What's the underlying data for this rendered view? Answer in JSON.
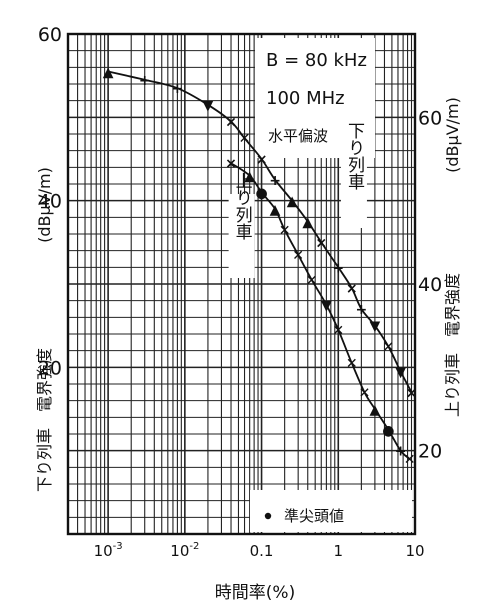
{
  "chart_data": {
    "type": "scatter",
    "title": "",
    "x_axis": {
      "label": "時間率(%)",
      "scale": "log",
      "range": [
        0.0003,
        10
      ],
      "tick_labels": [
        "10^-3",
        "10^-2",
        "0.1",
        "1",
        "10"
      ],
      "tick_values": [
        0.001,
        0.01,
        0.1,
        1,
        10
      ]
    },
    "y_left": {
      "label_unit": "(dBμV/m)",
      "label_text": "下り列車　電界強度",
      "range": [
        0,
        60
      ],
      "tick_labels": [
        "20",
        "40",
        "60"
      ],
      "tick_values": [
        20,
        40,
        60
      ]
    },
    "y_right": {
      "label_unit": "(dBμV/m)",
      "label_text": "上り列車　電界強度",
      "range": [
        10,
        70
      ],
      "tick_labels": [
        "20",
        "40",
        "60"
      ],
      "tick_values": [
        20,
        40,
        60
      ]
    },
    "grid": true,
    "annotations": [
      "B = 80 kHz",
      "100 MHz",
      "水平偏波"
    ],
    "legend": {
      "entries": [
        "準尖頭値"
      ],
      "placement": "bottom-right"
    },
    "series": [
      {
        "name": "下り列車",
        "y_axis": "left",
        "values_x": [
          0.001,
          0.003,
          0.008,
          0.02,
          0.04,
          0.06,
          0.1,
          0.15,
          0.25,
          0.4,
          0.6,
          1.0,
          1.5,
          2.0,
          3.0,
          4.5,
          6.5,
          9.0
        ],
        "values_y": [
          55.5,
          54.5,
          53.5,
          51.5,
          49.5,
          47.5,
          45.0,
          42.5,
          40.0,
          37.5,
          35.0,
          32.0,
          29.5,
          27.0,
          25.0,
          22.5,
          19.5,
          17.0
        ],
        "markers": [
          "▲",
          "+",
          "+",
          "▼",
          "×",
          "✕",
          "×",
          "+",
          "▲",
          "▲",
          "×",
          "+",
          "×",
          "+",
          "▼",
          "✕",
          "▼",
          "×"
        ]
      },
      {
        "name": "上り列車",
        "y_axis": "right",
        "values_x": [
          0.04,
          0.07,
          0.1,
          0.15,
          0.2,
          0.3,
          0.45,
          0.7,
          1.0,
          1.5,
          2.2,
          3.0,
          4.5,
          6.5,
          8.5
        ],
        "values_y": [
          54.5,
          53.0,
          51.0,
          49.0,
          46.5,
          43.5,
          40.5,
          37.5,
          34.5,
          30.5,
          27.0,
          25.0,
          22.5,
          20.0,
          19.0
        ],
        "markers": [
          "×",
          "▲",
          "●",
          "▲",
          "✕",
          "✕",
          "✕",
          "▼",
          "✕",
          "✕",
          "✕",
          "▲",
          "●",
          "+",
          "✕"
        ]
      }
    ],
    "curve_labels": [
      "下り列車",
      "上り列車"
    ]
  }
}
